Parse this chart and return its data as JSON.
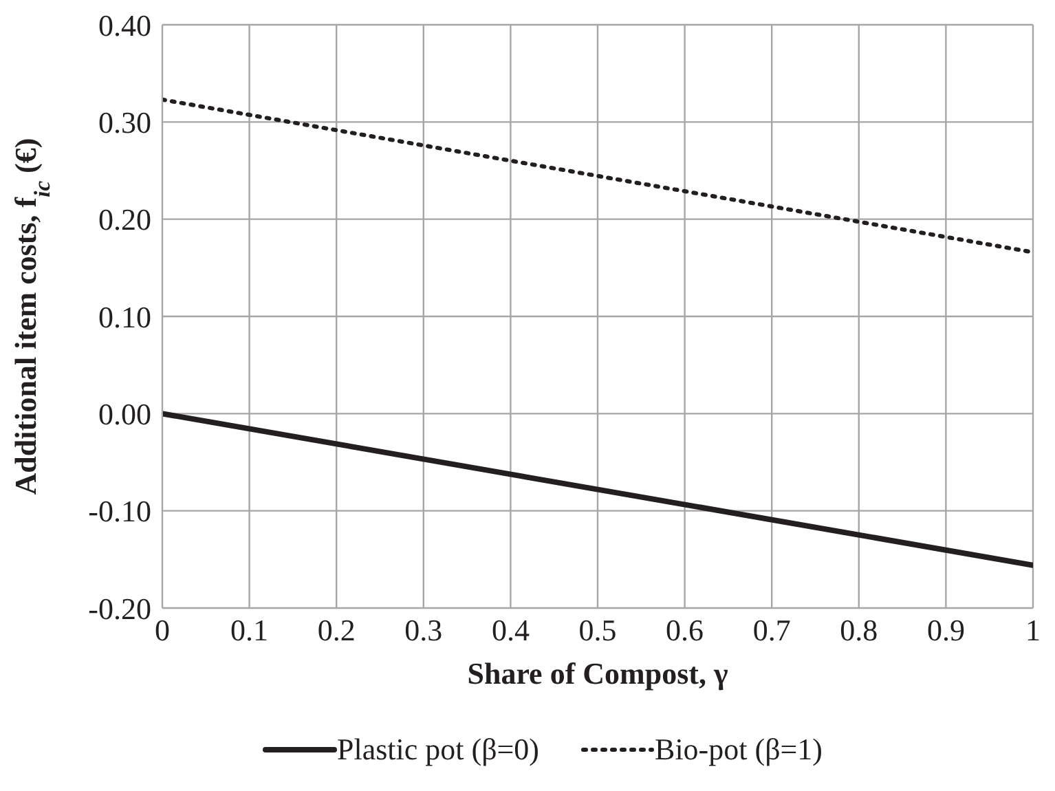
{
  "chart_data": {
    "type": "line",
    "xlabel": "Share of Compost, γ",
    "ylabel": "Additional item costs, f$_{ic}$ (€)",
    "x": [
      0,
      1
    ],
    "series": [
      {
        "name": "Plastic pot (β=0)",
        "color": "#231f20",
        "values": [
          0,
          -0.156
        ],
        "line_style": "solid"
      },
      {
        "name": "Bio-pot (β=1)",
        "color": "#231f20",
        "values": [
          0.323,
          0.166
        ],
        "line_style": "dotted"
      }
    ],
    "xlim": [
      0,
      1
    ],
    "xticks": [
      0,
      0.1,
      0.2,
      0.3,
      0.4,
      0.5,
      0.6,
      0.7,
      0.8,
      0.9,
      1
    ],
    "ylim": [
      -0.2,
      0.4
    ],
    "yticks": [
      {
        "value": -0.2,
        "label": "-0.20"
      },
      {
        "value": -0.1,
        "label": "-0.10"
      },
      {
        "value": 0,
        "label": "0.00"
      },
      {
        "value": 0.1,
        "label": "0.10"
      },
      {
        "value": 0.2,
        "label": "0.20"
      },
      {
        "value": 0.3,
        "label": "0.30"
      },
      {
        "value": 0.4,
        "label": "0.40"
      }
    ],
    "grid": true,
    "legend": "bottom",
    "marker": "none"
  }
}
